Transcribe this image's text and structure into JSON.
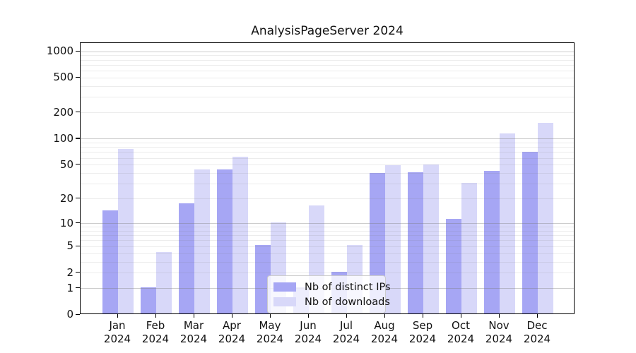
{
  "chart": {
    "colors": {
      "ips": "#a6a6f4",
      "downloads": "#d8d8f9",
      "grid_major": "rgba(120,120,120,0.38)",
      "grid_minor": "rgba(120,120,120,0.14)",
      "axis": "#000000"
    },
    "legend": {
      "items": [
        {
          "label": "Nb of distinct IPs",
          "series": "ips"
        },
        {
          "label": "Nb of downloads",
          "series": "downloads"
        }
      ]
    }
  },
  "chart_data": {
    "type": "bar",
    "title": "AnalysisPageServer 2024",
    "categories": [
      "Jan 2024",
      "Feb 2024",
      "Mar 2024",
      "Apr 2024",
      "May 2024",
      "Jun 2024",
      "Jul 2024",
      "Aug 2024",
      "Sep 2024",
      "Oct 2024",
      "Nov 2024",
      "Dec 2024"
    ],
    "series": [
      {
        "name": "Nb of distinct IPs",
        "values": [
          14,
          1,
          17,
          43,
          5,
          1,
          2,
          39,
          40,
          11,
          41,
          69
        ]
      },
      {
        "name": "Nb of downloads",
        "values": [
          74,
          4,
          43,
          60,
          10,
          16,
          5,
          48,
          49,
          30,
          112,
          148
        ]
      }
    ],
    "yscale": "log10(1+v)",
    "y_ticks": [
      0,
      1,
      2,
      5,
      10,
      20,
      50,
      100,
      200,
      500,
      1000
    ],
    "ylim": [
      0,
      1250
    ],
    "xlabel": "",
    "ylabel": "",
    "grid": "horizontal major+minor, drawn over bars",
    "legend_position": "lower center"
  }
}
